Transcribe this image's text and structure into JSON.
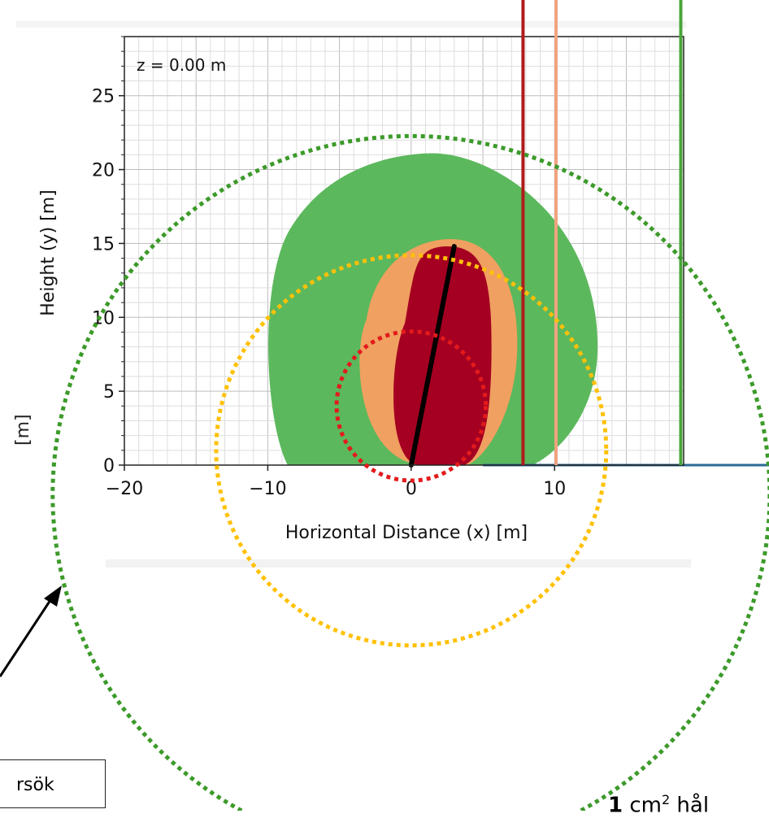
{
  "chart_data": {
    "type": "heatmap",
    "title": "z = 0.00 m",
    "xlabel": "Horizontal Distance (x) [m]",
    "ylabel": "Height (y) [m]",
    "xlim": [
      -20,
      19
    ],
    "ylim": [
      0,
      29
    ],
    "xticks": [
      -20,
      -10,
      0,
      10
    ],
    "yticks": [
      0,
      5,
      10,
      15,
      20,
      25
    ],
    "grid": true,
    "zones": [
      {
        "name": "outer",
        "color": "#5cb85c",
        "center_x": 0.5,
        "height": 21.1,
        "x_extent": [
          -10.6,
          13.0
        ]
      },
      {
        "name": "middle",
        "color": "#f0a060",
        "center_x": 2.2,
        "height": 15.3,
        "x_extent": [
          -3.8,
          7.4
        ]
      },
      {
        "name": "inner",
        "color": "#a50021",
        "center_x": 2.0,
        "height": 14.8,
        "x_extent": [
          -1.8,
          5.6
        ]
      }
    ],
    "jet_line": {
      "from": [
        0,
        0
      ],
      "to": [
        3,
        14.8
      ],
      "color": "#000000"
    },
    "vertical_markers": [
      {
        "x": 7.8,
        "color": "#b01c1c"
      },
      {
        "x": 10.1,
        "color": "#f0a480"
      },
      {
        "x": 18.8,
        "color": "#4aa63a"
      }
    ],
    "ground_line": {
      "from_x": 5,
      "color": "#2a6a94"
    },
    "circles": [
      {
        "color": "#e31a1c",
        "center": [
          0,
          4
        ],
        "radius": 5.2
      },
      {
        "color": "#ffc107",
        "center": [
          0,
          1
        ],
        "radius": 13.6
      },
      {
        "color": "#3c9a2a",
        "center": [
          0,
          -2
        ],
        "radius": 25.0
      }
    ]
  },
  "side_unit": "[m]",
  "note": "rsök",
  "caption": {
    "bold": "1",
    "unit": " cm",
    "sup": "2",
    "text": " hål"
  }
}
